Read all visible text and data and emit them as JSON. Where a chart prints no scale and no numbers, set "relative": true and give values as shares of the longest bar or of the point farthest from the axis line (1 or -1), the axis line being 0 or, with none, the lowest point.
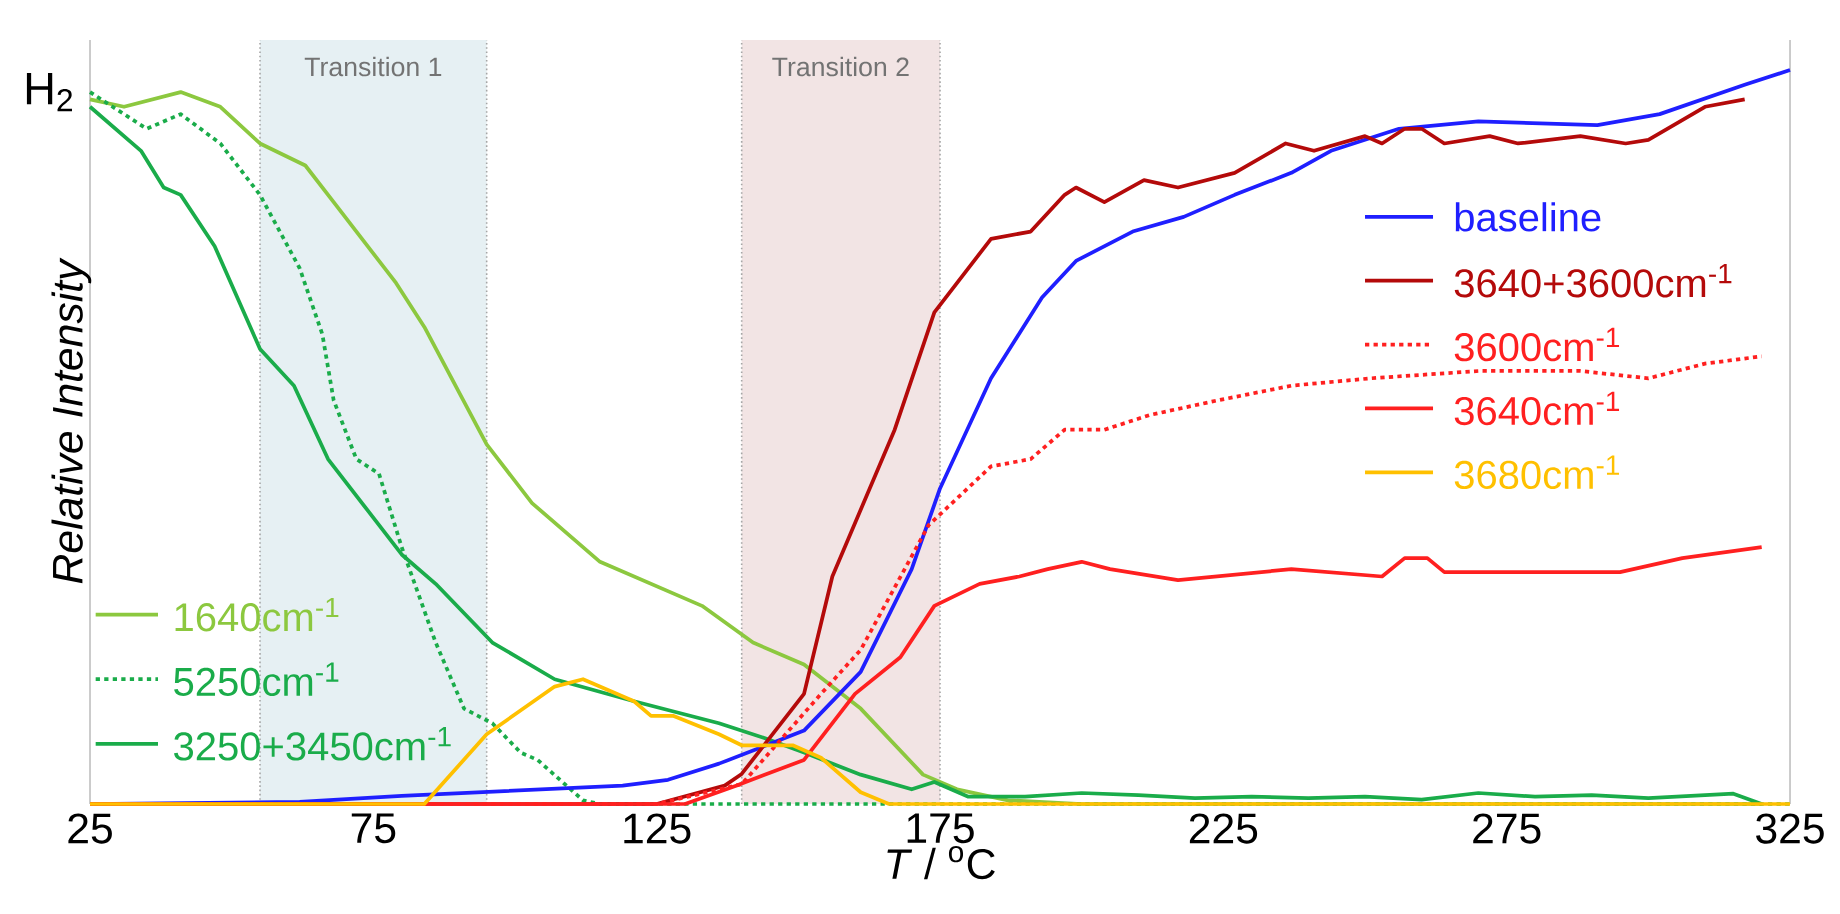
{
  "chart_data": {
    "type": "line",
    "relative": true,
    "xlabel": "*T* / $^{o}$C",
    "ylabel": "Relative Intensity",
    "annotations": [
      "H$_{2}$"
    ],
    "xlim": [
      25,
      325
    ],
    "xticks": [
      25,
      75,
      125,
      175,
      225,
      275,
      325
    ],
    "legend": "right",
    "marker": "none",
    "bands": [
      {
        "axis": "x",
        "from": 55,
        "to": 95,
        "label": "Transition 1",
        "color": "#e6f0f3"
      },
      {
        "axis": "x",
        "from": 140,
        "to": 175,
        "label": "Transition 2",
        "color": "#f2e4e4"
      }
    ],
    "series": [
      {
        "name": "1640cm$^{-1}$",
        "color": "#8cc83f",
        "line_style": "solid",
        "x": [
          25,
          31,
          41,
          48,
          55,
          63,
          68,
          79,
          84,
          95,
          103,
          115,
          133,
          142,
          151,
          161,
          172,
          178,
          187,
          200,
          320
        ],
        "values": [
          0.96,
          0.95,
          0.97,
          0.95,
          0.9,
          0.87,
          0.82,
          0.71,
          0.65,
          0.49,
          0.41,
          0.33,
          0.27,
          0.22,
          0.19,
          0.13,
          0.04,
          0.02,
          0.005,
          0,
          0
        ]
      },
      {
        "name": "5250cm$^{-1}$",
        "color": "#1aac4a",
        "line_style": "dotted",
        "x": [
          25,
          35,
          41,
          48,
          55,
          62,
          66,
          68,
          72,
          76,
          80,
          86,
          91,
          96,
          101,
          104,
          112,
          115,
          325
        ],
        "values": [
          0.97,
          0.92,
          0.94,
          0.9,
          0.83,
          0.73,
          0.64,
          0.55,
          0.47,
          0.45,
          0.35,
          0.22,
          0.13,
          0.11,
          0.07,
          0.06,
          0.005,
          0,
          0
        ]
      },
      {
        "name": "3250+3450cm$^{-1}$",
        "color": "#1aac4a",
        "line_style": "solid",
        "x": [
          25,
          34,
          38,
          41,
          47,
          55,
          61,
          67,
          74,
          80,
          86,
          96,
          107,
          121,
          136,
          144,
          151,
          161,
          170,
          174,
          180,
          190,
          200,
          210,
          220,
          230,
          240,
          250,
          260,
          270,
          280,
          290,
          300,
          310,
          315,
          320
        ],
        "values": [
          0.95,
          0.89,
          0.84,
          0.83,
          0.76,
          0.62,
          0.57,
          0.47,
          0.4,
          0.34,
          0.3,
          0.22,
          0.17,
          0.14,
          0.11,
          0.09,
          0.07,
          0.04,
          0.02,
          0.03,
          0.01,
          0.01,
          0.015,
          0.012,
          0.008,
          0.01,
          0.008,
          0.01,
          0.006,
          0.015,
          0.01,
          0.012,
          0.008,
          0.012,
          0.014,
          0
        ]
      },
      {
        "name": "baseline",
        "color": "#1f1fff",
        "line_style": "solid",
        "x": [
          25,
          62,
          80,
          119,
          127,
          136,
          151,
          161,
          170,
          175,
          184,
          193,
          199,
          209,
          218,
          227,
          237,
          244,
          256,
          270,
          291,
          302,
          317,
          325
        ],
        "values": [
          0,
          0.003,
          0.011,
          0.025,
          0.033,
          0.055,
          0.1,
          0.18,
          0.32,
          0.43,
          0.58,
          0.69,
          0.74,
          0.78,
          0.8,
          0.83,
          0.86,
          0.89,
          0.92,
          0.93,
          0.925,
          0.94,
          0.98,
          1
        ]
      },
      {
        "name": "3640+3600cm$^{-1}$",
        "color": "#b40a0a",
        "line_style": "solid",
        "x": [
          25,
          125,
          137,
          140,
          151,
          156,
          167,
          174,
          184,
          191,
          197,
          199,
          204,
          211,
          217,
          227,
          236,
          241,
          250,
          253,
          257,
          260,
          264,
          272,
          277,
          288,
          296,
          300,
          310,
          317
        ],
        "values": [
          0,
          0,
          0.025,
          0.041,
          0.15,
          0.31,
          0.51,
          0.67,
          0.77,
          0.78,
          0.83,
          0.84,
          0.82,
          0.85,
          0.84,
          0.86,
          0.9,
          0.89,
          0.91,
          0.9,
          0.92,
          0.92,
          0.9,
          0.91,
          0.9,
          0.91,
          0.9,
          0.905,
          0.95,
          0.96
        ]
      },
      {
        "name": "3600cm$^{-1}$",
        "color": "#ff2020",
        "line_style": "dotted",
        "x": [
          25,
          125,
          140,
          154,
          161,
          173,
          184,
          191,
          197,
          204,
          212,
          224,
          237,
          251,
          270,
          288,
          300,
          310,
          320
        ],
        "values": [
          0,
          0,
          0.027,
          0.15,
          0.21,
          0.38,
          0.46,
          0.47,
          0.51,
          0.51,
          0.53,
          0.55,
          0.57,
          0.58,
          0.59,
          0.59,
          0.58,
          0.6,
          0.61
        ]
      },
      {
        "name": "3640cm$^{-1}$",
        "color": "#ff2020",
        "line_style": "solid",
        "x": [
          25,
          130,
          139,
          151,
          160,
          168,
          174,
          182,
          189,
          194,
          200,
          205,
          217,
          237,
          253,
          257,
          261,
          264,
          285,
          295,
          306,
          320
        ],
        "values": [
          0,
          0,
          0.025,
          0.06,
          0.15,
          0.2,
          0.27,
          0.3,
          0.31,
          0.32,
          0.33,
          0.32,
          0.305,
          0.32,
          0.31,
          0.335,
          0.335,
          0.316,
          0.316,
          0.316,
          0.335,
          0.35
        ]
      },
      {
        "name": "3680cm$^{-1}$",
        "color": "#ffc000",
        "line_style": "solid",
        "x": [
          25,
          84,
          95,
          107,
          112,
          121,
          124,
          128,
          136,
          140,
          149,
          154,
          161,
          166,
          325
        ],
        "values": [
          0,
          0,
          0.095,
          0.16,
          0.17,
          0.14,
          0.12,
          0.12,
          0.095,
          0.08,
          0.08,
          0.063,
          0.016,
          0,
          0
        ]
      }
    ]
  }
}
